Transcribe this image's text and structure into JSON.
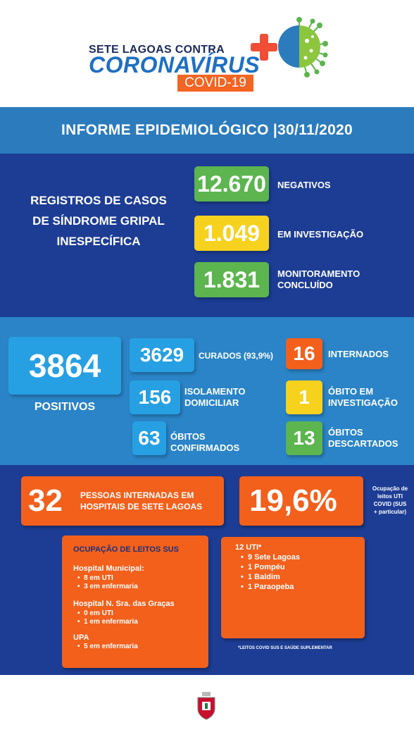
{
  "header": {
    "logo_top": "SETE LAGOAS CONTRA",
    "logo_main": "CORONAVÍRUS",
    "logo_sub": "COVID-19",
    "title": "INFORME EPIDEMIOLÓGICO |30/11/2020"
  },
  "sindrome": {
    "label": "REGISTROS DE CASOS DE SÍNDROME GRIPAL INESPECÍFICA",
    "negativos": {
      "value": "12.670",
      "label": "NEGATIVOS"
    },
    "investigacao": {
      "value": "1.049",
      "label": "EM INVESTIGAÇÃO"
    },
    "monitoramento": {
      "value": "1.831",
      "label_1": "MONITORAMENTO",
      "label_2": "CONCLUÍDO"
    }
  },
  "positivos": {
    "total": {
      "value": "3864",
      "label": "POSITIVOS"
    },
    "curados": {
      "value": "3629",
      "label": "CURADOS (93,9%)"
    },
    "isolamento": {
      "value": "156",
      "label_1": "ISOLAMENTO",
      "label_2": "DOMICILIAR"
    },
    "obitos": {
      "value": "63",
      "label_1": "ÓBITOS",
      "label_2": "CONFIRMADOS"
    },
    "internados": {
      "value": "16",
      "label": "INTERNADOS"
    },
    "obito_investigacao": {
      "value": "1",
      "label_1": "ÓBITO EM",
      "label_2": "INVESTIGAÇÃO"
    },
    "obitos_descartados": {
      "value": "13",
      "label_1": "ÓBITOS",
      "label_2": "DESCARTADOS"
    }
  },
  "hospital": {
    "internadas": {
      "value": "32",
      "label_1": "PESSOAS INTERNADAS EM",
      "label_2": "HOSPITAIS DE SETE LAGOAS"
    },
    "ocupacao_uti": {
      "value": "19,6%",
      "label_1": "Ocupação de",
      "label_2": "leitos UTI",
      "label_3": "COVID (SUS",
      "label_4": "+ particular)"
    },
    "sus": {
      "title": "OCUPAÇÃO DE LEITOS SUS",
      "hm_title": "Hospital Municipal:",
      "hm_items": [
        "8 em UTI",
        "3 em enfermaria"
      ],
      "hng_title": "Hospital N. Sra. das Graças",
      "hng_items": [
        "0 em UTI",
        "1 em enfermaria"
      ],
      "upa_title": "UPA",
      "upa_items": [
        "5 em enfermaria"
      ]
    },
    "uti": {
      "title": "12  UTI*",
      "items": [
        "9 Sete Lagoas",
        "1 Pompéu",
        "1 Baldim",
        "1 Paraopeba"
      ],
      "footnote": "*LEITOS COVID SUS E SAÚDE SUPLEMENTAR"
    }
  },
  "colors": {
    "dark_blue": "#1d3d94",
    "mid_blue": "#2a84c7",
    "green": "#5cb54f",
    "yellow": "#f6d21e",
    "orange": "#f2601c",
    "light_blue": "#27a0e3"
  },
  "icons": [
    "virus-icon",
    "plus-icon",
    "city-crest-icon"
  ]
}
